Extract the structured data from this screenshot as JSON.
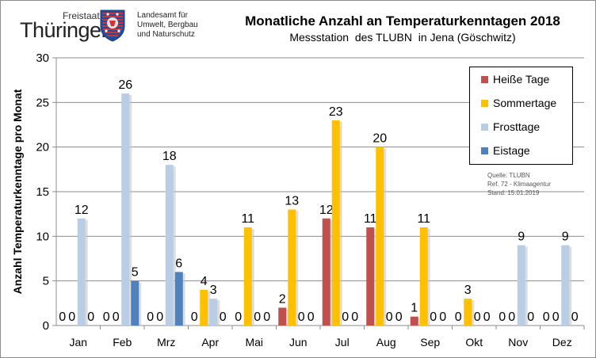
{
  "header": {
    "logo_freistaat": "Freistaat",
    "logo_name": "Thüringen",
    "agency_lines": [
      "Landesamt für",
      "Umwelt, Bergbau",
      "und Naturschutz"
    ]
  },
  "source_lines": [
    "Quelle: TLUBN",
    "Ref. 72 - Klimaagentur",
    "Stand: 15.01.2019"
  ],
  "chart_data": {
    "type": "bar",
    "title": "Monatliche Anzahl an Temperaturkenntagen 2018",
    "subtitle": "Messstation  des TLUBN  in Jena (Göschwitz)",
    "ylabel": "Anzahl Temperaturkenntage  pro Monat",
    "xlabel": "",
    "ylim": [
      0,
      30
    ],
    "yticks": [
      0,
      5,
      10,
      15,
      20,
      25,
      30
    ],
    "grid": "horizontal",
    "legend_position": "top-right",
    "categories": [
      "Jan",
      "Feb",
      "Mrz",
      "Apr",
      "Mai",
      "Jun",
      "Jul",
      "Aug",
      "Sep",
      "Okt",
      "Nov",
      "Dez"
    ],
    "series": [
      {
        "name": "Heiße Tage",
        "color": "#c0504d",
        "values": [
          0,
          0,
          0,
          0,
          0,
          2,
          12,
          11,
          1,
          0,
          0,
          0
        ]
      },
      {
        "name": "Sommertage",
        "color": "#ffc000",
        "values": [
          0,
          0,
          0,
          4,
          11,
          13,
          23,
          20,
          11,
          3,
          0,
          0
        ]
      },
      {
        "name": "Frosttage",
        "color": "#b9cde5",
        "values": [
          12,
          26,
          18,
          3,
          0,
          0,
          0,
          0,
          0,
          0,
          9,
          9
        ]
      },
      {
        "name": "Eistage",
        "color": "#4f81bd",
        "values": [
          0,
          5,
          6,
          0,
          0,
          0,
          0,
          0,
          0,
          0,
          0,
          0
        ]
      }
    ]
  }
}
